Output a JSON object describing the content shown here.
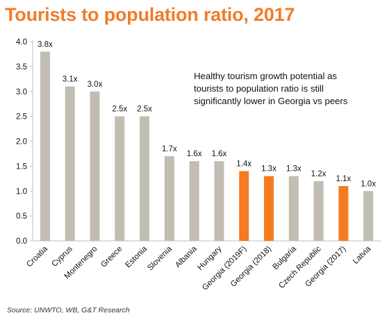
{
  "title": "Tourists to population ratio, 2017",
  "annotation": [
    "Healthy tourism growth potential as",
    "tourists to population ratio is still",
    "significantly lower in Georgia vs peers"
  ],
  "source": "Source: UNWTO, WB, G&T Research",
  "colors": {
    "title": "#f07c27",
    "bar_default": "#c1bdb3",
    "bar_highlight": "#f47b20",
    "axis": "#bfbfbf"
  },
  "chart_data": {
    "type": "bar",
    "categories": [
      "Croatia",
      "Cyprus",
      "Montenegro",
      "Greece",
      "Estonia",
      "Slovenia",
      "Albania",
      "Hungary",
      "Georgia (2019F)",
      "Georgia (2018)",
      "Bulgaria",
      "Czech Republic",
      "Georgia (2017)",
      "Latvia"
    ],
    "values": [
      3.8,
      3.1,
      3.0,
      2.5,
      2.5,
      1.7,
      1.6,
      1.6,
      1.4,
      1.3,
      1.3,
      1.2,
      1.1,
      1.0
    ],
    "data_labels": [
      "3.8x",
      "3.1x",
      "3.0x",
      "2.5x",
      "2.5x",
      "1.7x",
      "1.6x",
      "1.6x",
      "1.4x",
      "1.3x",
      "1.3x",
      "1.2x",
      "1.1x",
      "1.0x"
    ],
    "highlighted": [
      "Georgia (2019F)",
      "Georgia (2018)",
      "Georgia (2017)"
    ],
    "yticks": [
      "0.0",
      "0.5",
      "1.0",
      "1.5",
      "2.0",
      "2.5",
      "3.0",
      "3.5",
      "4.0"
    ],
    "ylim": [
      0,
      4
    ],
    "grid": false,
    "legend": "none"
  }
}
